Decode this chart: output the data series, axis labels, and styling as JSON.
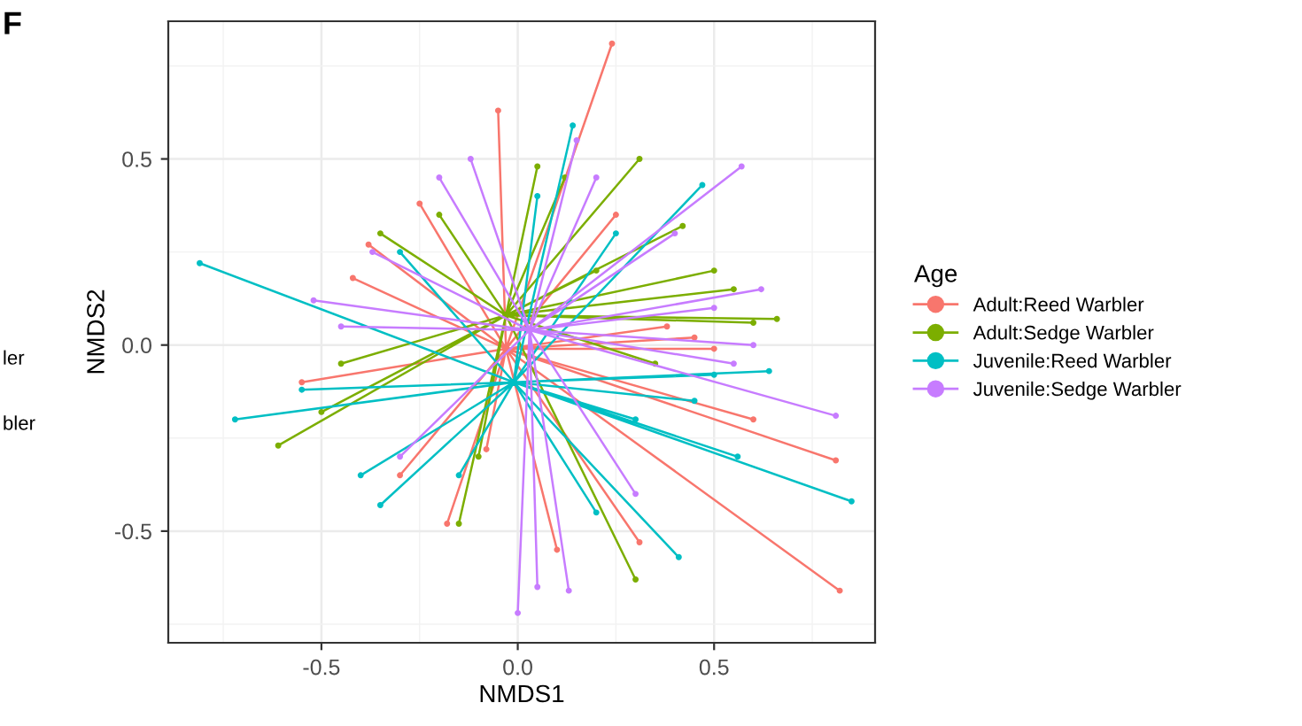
{
  "chart_data": {
    "type": "line",
    "xlabel": "NMDS1",
    "ylabel": "NMDS2",
    "legend_title": "Age",
    "legend": "right",
    "grid": true,
    "marker": "circle",
    "line_style": "solid",
    "xlim": [
      -0.89,
      0.91
    ],
    "ylim": [
      -0.8,
      0.87
    ],
    "xticks": [
      {
        "value": -0.75,
        "label": null
      },
      -0.5,
      {
        "value": -0.25,
        "label": null
      },
      {
        "value": 0,
        "label": "0.0"
      },
      {
        "value": 0.25,
        "label": null
      },
      0.5,
      {
        "value": 0.75,
        "label": null
      }
    ],
    "yticks": [
      {
        "value": -0.75,
        "label": null
      },
      -0.5,
      {
        "value": -0.25,
        "label": null
      },
      {
        "value": 0,
        "label": "0.0"
      },
      {
        "value": 0.25,
        "label": null
      },
      0.5,
      {
        "value": 0.75,
        "label": null
      }
    ],
    "annotations": [
      "F",
      "ler",
      "bler"
    ],
    "series": [
      {
        "name": "Adult:Reed Warbler",
        "color": "#f8766d",
        "x": [
          -0.03,
          0.24,
          null,
          -0.03,
          -0.05,
          null,
          -0.03,
          0.82,
          null,
          -0.03,
          0.81,
          null,
          -0.03,
          0.5,
          null,
          -0.03,
          0.45,
          null,
          -0.03,
          -0.38,
          null,
          -0.03,
          -0.25,
          null,
          -0.03,
          -0.42,
          null,
          -0.03,
          0.31,
          null,
          -0.03,
          -0.18,
          null,
          -0.03,
          -0.08,
          null,
          -0.03,
          0.6,
          null,
          -0.03,
          0.25,
          null,
          -0.03,
          -0.55,
          null,
          -0.03,
          0.1,
          null,
          -0.03,
          0.38,
          null,
          -0.03,
          -0.3
        ],
        "values": [
          -0.01,
          0.81,
          null,
          -0.01,
          0.63,
          null,
          -0.01,
          -0.66,
          null,
          -0.01,
          -0.31,
          null,
          -0.01,
          -0.01,
          null,
          -0.01,
          0.02,
          null,
          -0.01,
          0.27,
          null,
          -0.01,
          0.38,
          null,
          -0.01,
          0.18,
          null,
          -0.01,
          -0.53,
          null,
          -0.01,
          -0.48,
          null,
          -0.01,
          -0.28,
          null,
          -0.01,
          -0.2,
          null,
          -0.01,
          0.35,
          null,
          -0.01,
          -0.1,
          null,
          -0.01,
          -0.55,
          null,
          -0.01,
          0.05,
          null,
          -0.01,
          -0.35
        ]
      },
      {
        "name": "Adult:Sedge Warbler",
        "color": "#7cae00",
        "x": [
          -0.03,
          -0.61,
          null,
          -0.03,
          0.3,
          null,
          -0.03,
          0.66,
          null,
          -0.03,
          0.31,
          null,
          -0.03,
          -0.15,
          null,
          -0.03,
          0.12,
          null,
          -0.03,
          -0.2,
          null,
          -0.03,
          0.5,
          null,
          -0.03,
          0.6,
          null,
          -0.03,
          -0.45,
          null,
          -0.03,
          0.42,
          null,
          -0.03,
          -0.35,
          null,
          -0.03,
          0.05,
          null,
          -0.03,
          0.2,
          null,
          -0.03,
          -0.5,
          null,
          -0.03,
          0.55,
          null,
          -0.03,
          0.35,
          null,
          -0.03,
          -0.1
        ],
        "values": [
          0.08,
          -0.27,
          null,
          0.08,
          -0.63,
          null,
          0.08,
          0.07,
          null,
          0.08,
          0.5,
          null,
          0.08,
          -0.48,
          null,
          0.08,
          0.45,
          null,
          0.08,
          0.35,
          null,
          0.08,
          0.2,
          null,
          0.08,
          0.06,
          null,
          0.08,
          -0.05,
          null,
          0.08,
          0.32,
          null,
          0.08,
          0.3,
          null,
          0.08,
          0.48,
          null,
          0.08,
          0.2,
          null,
          0.08,
          -0.18,
          null,
          0.08,
          0.15,
          null,
          0.08,
          -0.05,
          null,
          0.08,
          -0.3
        ]
      },
      {
        "name": "Juvenile:Reed Warbler",
        "color": "#00bfc4",
        "x": [
          -0.01,
          -0.81,
          null,
          -0.01,
          -0.72,
          null,
          -0.01,
          0.85,
          null,
          -0.01,
          0.41,
          null,
          -0.01,
          0.56,
          null,
          -0.01,
          0.64,
          null,
          -0.01,
          0.14,
          null,
          -0.01,
          0.47,
          null,
          -0.01,
          -0.35,
          null,
          -0.01,
          -0.4,
          null,
          -0.01,
          0.2,
          null,
          -0.01,
          0.05,
          null,
          -0.01,
          0.5,
          null,
          -0.01,
          -0.3,
          null,
          -0.01,
          0.3,
          null,
          -0.01,
          -0.15,
          null,
          -0.01,
          0.25,
          null,
          -0.01,
          0.45,
          null,
          -0.01,
          -0.55
        ],
        "values": [
          -0.1,
          0.22,
          null,
          -0.1,
          -0.2,
          null,
          -0.1,
          -0.42,
          null,
          -0.1,
          -0.57,
          null,
          -0.1,
          -0.3,
          null,
          -0.1,
          -0.07,
          null,
          -0.1,
          0.59,
          null,
          -0.1,
          0.43,
          null,
          -0.1,
          -0.43,
          null,
          -0.1,
          -0.35,
          null,
          -0.1,
          -0.45,
          null,
          -0.1,
          0.4,
          null,
          -0.1,
          -0.08,
          null,
          -0.1,
          0.25,
          null,
          -0.1,
          -0.2,
          null,
          -0.1,
          -0.35,
          null,
          -0.1,
          0.3,
          null,
          -0.1,
          -0.15,
          null,
          -0.1,
          -0.12
        ]
      },
      {
        "name": "Juvenile:Sedge Warbler",
        "color": "#c77cff",
        "x": [
          0.03,
          0.0,
          null,
          0.03,
          0.13,
          null,
          0.03,
          0.05,
          null,
          0.03,
          0.57,
          null,
          0.03,
          0.81,
          null,
          0.03,
          -0.37,
          null,
          0.03,
          0.5,
          null,
          0.03,
          -0.2,
          null,
          0.03,
          -0.12,
          null,
          0.03,
          0.55,
          null,
          0.03,
          0.4,
          null,
          0.03,
          -0.45,
          null,
          0.03,
          0.62,
          null,
          0.03,
          -0.3,
          null,
          0.03,
          0.15,
          null,
          0.03,
          -0.52,
          null,
          0.03,
          0.6,
          null,
          0.03,
          0.3,
          null,
          0.03,
          0.2
        ],
        "values": [
          0.04,
          -0.72,
          null,
          0.04,
          -0.66,
          null,
          0.04,
          -0.65,
          null,
          0.04,
          0.48,
          null,
          0.04,
          -0.19,
          null,
          0.04,
          0.25,
          null,
          0.04,
          0.1,
          null,
          0.04,
          0.45,
          null,
          0.04,
          0.5,
          null,
          0.04,
          -0.05,
          null,
          0.04,
          0.3,
          null,
          0.04,
          0.05,
          null,
          0.04,
          0.15,
          null,
          0.04,
          -0.3,
          null,
          0.04,
          0.55,
          null,
          0.04,
          0.12,
          null,
          0.04,
          0.0,
          null,
          0.04,
          -0.4,
          null,
          0.04,
          0.45
        ]
      }
    ]
  }
}
